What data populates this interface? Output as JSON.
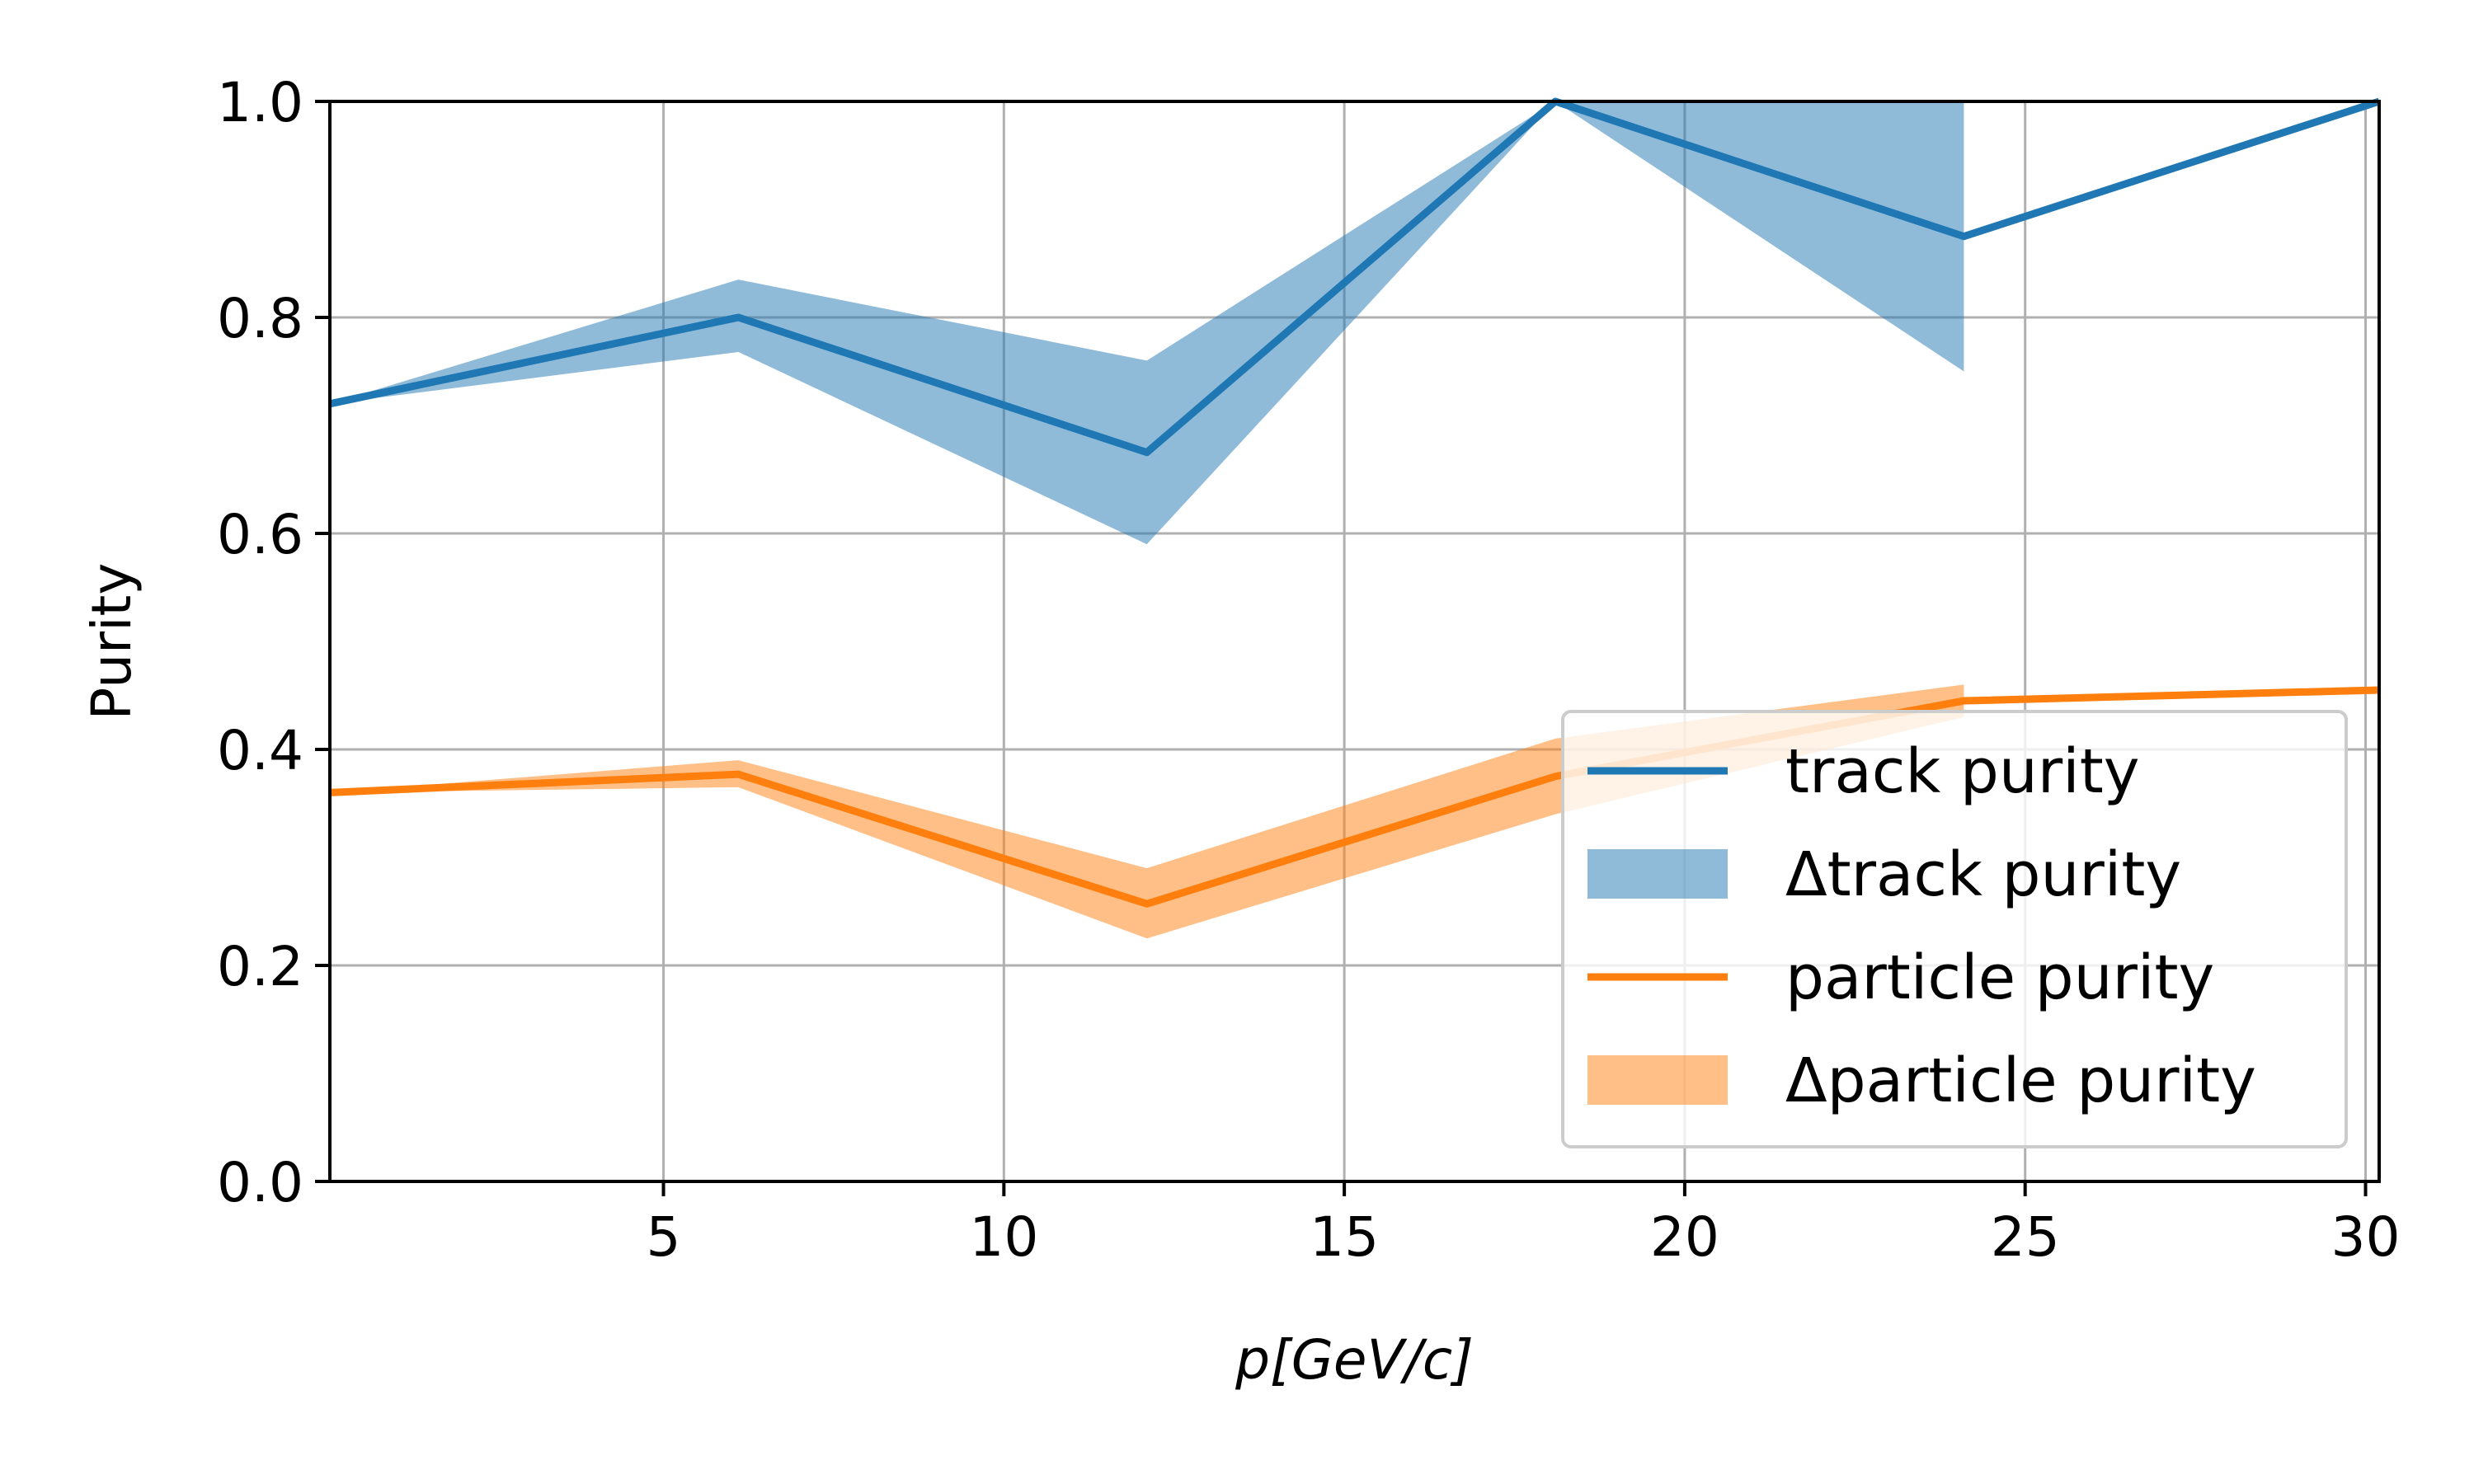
{
  "chart_data": {
    "type": "line",
    "title": "",
    "xlabel": "p[GeV/c]",
    "ylabel": "Purity",
    "xlim": [
      0.1,
      30.2
    ],
    "ylim": [
      0.0,
      1.0
    ],
    "grid": true,
    "legend_position": "lower right",
    "x_ticks": [
      5,
      10,
      15,
      20,
      25,
      30
    ],
    "x_tick_labels": [
      "5",
      "10",
      "15",
      "20",
      "25",
      "30"
    ],
    "y_ticks": [
      0.0,
      0.2,
      0.4,
      0.6,
      0.8,
      1.0
    ],
    "y_tick_labels": [
      "0.0",
      "0.2",
      "0.4",
      "0.6",
      "0.8",
      "1.0"
    ],
    "x": [
      0.1,
      6.1,
      12.1,
      18.1,
      24.1,
      30.2
    ],
    "series": [
      {
        "name": "track purity",
        "kind": "line",
        "color": "#1f77b4",
        "values": [
          0.72,
          0.8,
          0.675,
          1.0,
          0.875,
          1.0
        ]
      },
      {
        "name": "Δtrack purity",
        "kind": "band",
        "color": "#1f77b4",
        "x": [
          0.1,
          6.1,
          12.1,
          18.1,
          24.1
        ],
        "lower": [
          0.72,
          0.768,
          0.59,
          1.0,
          0.75
        ],
        "upper": [
          0.72,
          0.835,
          0.76,
          1.0,
          1.0
        ]
      },
      {
        "name": "particle purity",
        "kind": "line",
        "color": "#ff7f0e",
        "values": [
          0.36,
          0.377,
          0.257,
          0.375,
          0.445,
          0.455
        ]
      },
      {
        "name": "Δparticle purity",
        "kind": "band",
        "color": "#ff7f0e",
        "x": [
          0.1,
          6.1,
          12.1,
          18.1,
          24.1
        ],
        "lower": [
          0.36,
          0.365,
          0.225,
          0.34,
          0.43
        ],
        "upper": [
          0.36,
          0.39,
          0.29,
          0.41,
          0.46
        ]
      }
    ],
    "legend": [
      "track purity",
      "Δtrack purity",
      "particle purity",
      "Δparticle purity"
    ]
  }
}
